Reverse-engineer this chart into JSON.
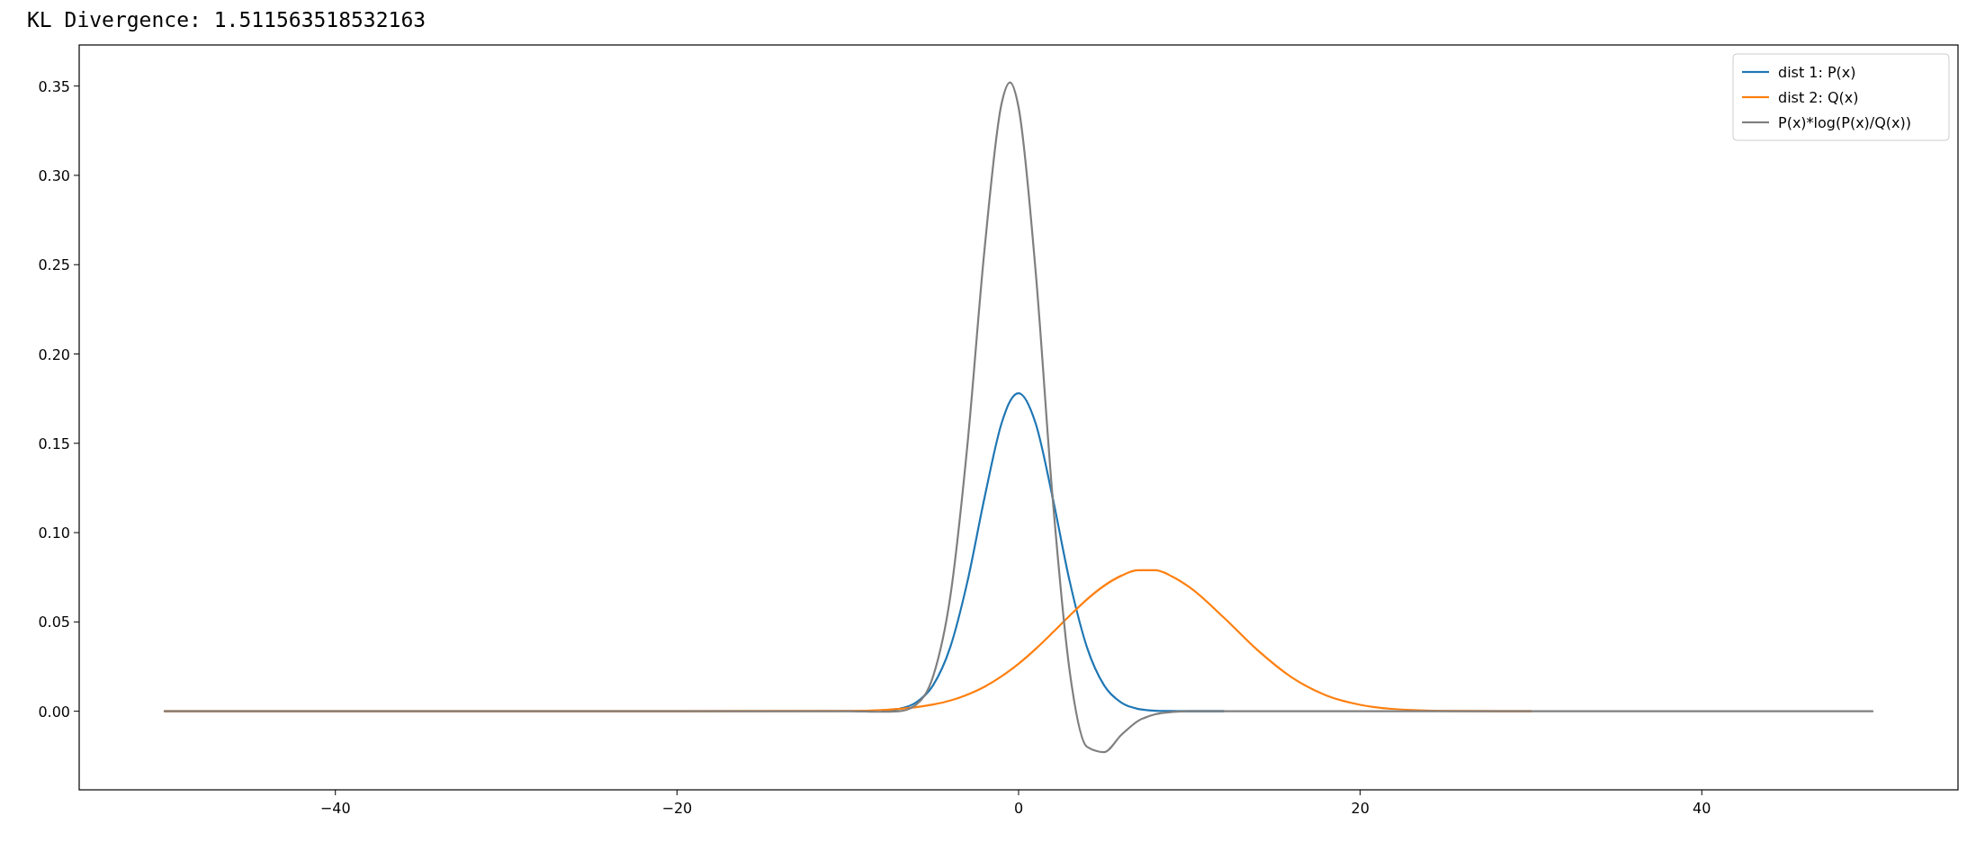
{
  "chart_data": {
    "type": "line",
    "title": "KL Divergence: 1.511563518532163",
    "x": [
      -50,
      -20,
      -10,
      -8,
      -7,
      -6,
      -5,
      -4,
      -3,
      -2,
      -1,
      -0.5,
      0,
      1,
      2,
      3,
      4,
      5,
      6,
      7,
      8,
      9,
      10,
      12,
      14,
      16,
      18,
      20,
      22,
      25,
      30,
      40,
      50
    ],
    "series": [
      {
        "name": "dist 1: P(x)",
        "color": "#1f77b4",
        "values": [
          null,
          null,
          null,
          0.0003,
          0.0013,
          0.0049,
          0.0146,
          0.0359,
          0.0724,
          0.1193,
          0.1611,
          0.1736,
          0.178,
          0.1611,
          0.1193,
          0.0724,
          0.0359,
          0.0146,
          0.0049,
          0.0013,
          0.0003,
          0.0001,
          0,
          0,
          null,
          null,
          null,
          null,
          null,
          null,
          null,
          null,
          null
        ]
      },
      {
        "name": "dist 2: Q(x)",
        "color": "#ff7f0e",
        "values": [
          0,
          0,
          0.0002,
          0.0007,
          0.0013,
          0.0023,
          0.0038,
          0.006,
          0.0093,
          0.0137,
          0.0195,
          0.0229,
          0.0266,
          0.0349,
          0.0441,
          0.0536,
          0.0626,
          0.0702,
          0.0758,
          0.0789,
          0.0789,
          0.0754,
          0.0695,
          0.0526,
          0.0341,
          0.0189,
          0.0089,
          0.0036,
          0.0012,
          0.0002,
          0,
          null,
          null
        ]
      },
      {
        "name": "P(x)*log(P(x)/Q(x))",
        "color": "#7f7f7f",
        "values": [
          0,
          0,
          0,
          -0.0003,
          0,
          0.0037,
          0.0197,
          0.0641,
          0.1487,
          0.258,
          0.34,
          0.352,
          0.338,
          0.246,
          0.1186,
          0.0218,
          -0.0199,
          -0.0229,
          -0.0134,
          -0.0054,
          -0.0017,
          -0.0004,
          0,
          0,
          0,
          0,
          0,
          0,
          0,
          0,
          0,
          0,
          0
        ]
      }
    ],
    "xlim": [
      -55,
      55
    ],
    "xticks": [
      {
        "value": -40,
        "label": "−40"
      },
      {
        "value": -20,
        "label": "−20"
      },
      0,
      20,
      40
    ],
    "ylim": [
      -0.044,
      0.373
    ],
    "yticks": [
      {
        "value": 0,
        "label": "0.00"
      },
      0.05,
      {
        "value": 0.1,
        "label": "0.10"
      },
      0.15,
      {
        "value": 0.2,
        "label": "0.20"
      },
      0.25,
      {
        "value": 0.3,
        "label": "0.30"
      },
      0.35
    ],
    "legend": "top right",
    "grid": false,
    "line_style": "solid",
    "marker": "none"
  }
}
